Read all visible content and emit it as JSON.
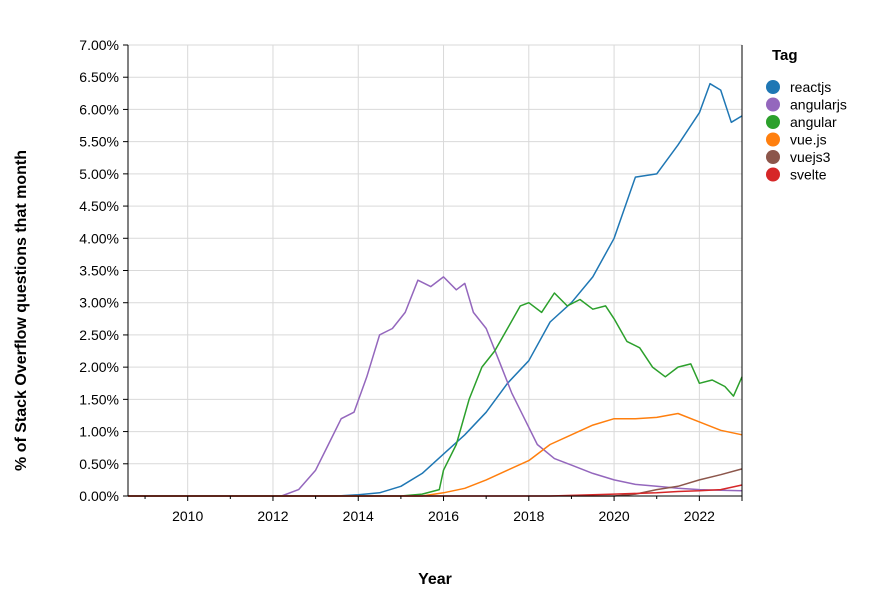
{
  "chart_data": {
    "type": "line",
    "xlabel": "Year",
    "ylabel": "% of Stack Overflow questions that month",
    "xlim": [
      2008.6,
      2023.0
    ],
    "ylim": [
      0,
      7.0
    ],
    "x_ticks": [
      2010,
      2012,
      2014,
      2016,
      2018,
      2020,
      2022
    ],
    "y_ticks": [
      0,
      0.5,
      1.0,
      1.5,
      2.0,
      2.5,
      3.0,
      3.5,
      4.0,
      4.5,
      5.0,
      5.5,
      6.0,
      6.5,
      7.0
    ],
    "y_tick_labels": [
      "0.00%",
      "0.50%",
      "1.00%",
      "1.50%",
      "2.00%",
      "2.50%",
      "3.00%",
      "3.50%",
      "4.00%",
      "4.50%",
      "5.00%",
      "5.50%",
      "6.00%",
      "6.50%",
      "7.00%"
    ],
    "grid": true,
    "legend": {
      "title": "Tag",
      "placement": "right"
    },
    "series": [
      {
        "name": "reactjs",
        "color": "#1f77b4",
        "points": [
          [
            2008.6,
            0
          ],
          [
            2013.5,
            0
          ],
          [
            2014.0,
            0.02
          ],
          [
            2014.5,
            0.05
          ],
          [
            2015.0,
            0.15
          ],
          [
            2015.5,
            0.35
          ],
          [
            2016.0,
            0.65
          ],
          [
            2016.5,
            0.95
          ],
          [
            2017.0,
            1.3
          ],
          [
            2017.5,
            1.75
          ],
          [
            2018.0,
            2.1
          ],
          [
            2018.5,
            2.7
          ],
          [
            2019.0,
            3.0
          ],
          [
            2019.5,
            3.4
          ],
          [
            2020.0,
            4.0
          ],
          [
            2020.5,
            4.95
          ],
          [
            2021.0,
            5.0
          ],
          [
            2021.5,
            5.45
          ],
          [
            2022.0,
            5.95
          ],
          [
            2022.25,
            6.4
          ],
          [
            2022.5,
            6.3
          ],
          [
            2022.75,
            5.8
          ],
          [
            2023.0,
            5.9
          ]
        ]
      },
      {
        "name": "angularjs",
        "color": "#9467bd",
        "points": [
          [
            2008.6,
            0
          ],
          [
            2012.2,
            0
          ],
          [
            2012.6,
            0.1
          ],
          [
            2013.0,
            0.4
          ],
          [
            2013.3,
            0.8
          ],
          [
            2013.6,
            1.2
          ],
          [
            2013.9,
            1.3
          ],
          [
            2014.2,
            1.85
          ],
          [
            2014.5,
            2.5
          ],
          [
            2014.8,
            2.6
          ],
          [
            2015.1,
            2.85
          ],
          [
            2015.4,
            3.35
          ],
          [
            2015.7,
            3.25
          ],
          [
            2016.0,
            3.4
          ],
          [
            2016.3,
            3.2
          ],
          [
            2016.5,
            3.3
          ],
          [
            2016.7,
            2.85
          ],
          [
            2017.0,
            2.6
          ],
          [
            2017.3,
            2.1
          ],
          [
            2017.6,
            1.6
          ],
          [
            2017.9,
            1.2
          ],
          [
            2018.2,
            0.8
          ],
          [
            2018.6,
            0.58
          ],
          [
            2019.0,
            0.48
          ],
          [
            2019.5,
            0.35
          ],
          [
            2020.0,
            0.25
          ],
          [
            2020.5,
            0.18
          ],
          [
            2021.0,
            0.15
          ],
          [
            2021.5,
            0.12
          ],
          [
            2022.0,
            0.1
          ],
          [
            2022.5,
            0.09
          ],
          [
            2023.0,
            0.08
          ]
        ]
      },
      {
        "name": "angular",
        "color": "#2ca02c",
        "points": [
          [
            2008.6,
            0
          ],
          [
            2015.0,
            0
          ],
          [
            2015.5,
            0.03
          ],
          [
            2015.9,
            0.1
          ],
          [
            2016.0,
            0.4
          ],
          [
            2016.3,
            0.8
          ],
          [
            2016.6,
            1.5
          ],
          [
            2016.9,
            2.0
          ],
          [
            2017.2,
            2.25
          ],
          [
            2017.5,
            2.6
          ],
          [
            2017.8,
            2.95
          ],
          [
            2018.0,
            3.0
          ],
          [
            2018.3,
            2.85
          ],
          [
            2018.6,
            3.15
          ],
          [
            2018.9,
            2.95
          ],
          [
            2019.2,
            3.05
          ],
          [
            2019.5,
            2.9
          ],
          [
            2019.8,
            2.95
          ],
          [
            2020.0,
            2.75
          ],
          [
            2020.3,
            2.4
          ],
          [
            2020.6,
            2.3
          ],
          [
            2020.9,
            2.0
          ],
          [
            2021.2,
            1.85
          ],
          [
            2021.5,
            2.0
          ],
          [
            2021.8,
            2.05
          ],
          [
            2022.0,
            1.75
          ],
          [
            2022.3,
            1.8
          ],
          [
            2022.6,
            1.7
          ],
          [
            2022.8,
            1.55
          ],
          [
            2023.0,
            1.85
          ]
        ]
      },
      {
        "name": "vue.js",
        "color": "#ff7f0e",
        "points": [
          [
            2008.6,
            0
          ],
          [
            2015.5,
            0
          ],
          [
            2016.0,
            0.05
          ],
          [
            2016.5,
            0.12
          ],
          [
            2017.0,
            0.25
          ],
          [
            2017.5,
            0.4
          ],
          [
            2018.0,
            0.55
          ],
          [
            2018.5,
            0.8
          ],
          [
            2019.0,
            0.95
          ],
          [
            2019.5,
            1.1
          ],
          [
            2020.0,
            1.2
          ],
          [
            2020.5,
            1.2
          ],
          [
            2021.0,
            1.22
          ],
          [
            2021.5,
            1.28
          ],
          [
            2022.0,
            1.15
          ],
          [
            2022.5,
            1.02
          ],
          [
            2023.0,
            0.95
          ]
        ]
      },
      {
        "name": "vuejs3",
        "color": "#8c564b",
        "points": [
          [
            2008.6,
            0
          ],
          [
            2020.0,
            0
          ],
          [
            2020.5,
            0.03
          ],
          [
            2021.0,
            0.1
          ],
          [
            2021.5,
            0.15
          ],
          [
            2022.0,
            0.25
          ],
          [
            2022.5,
            0.33
          ],
          [
            2023.0,
            0.42
          ]
        ]
      },
      {
        "name": "svelte",
        "color": "#d62728",
        "points": [
          [
            2008.6,
            0
          ],
          [
            2018.5,
            0
          ],
          [
            2019.0,
            0.01
          ],
          [
            2020.0,
            0.03
          ],
          [
            2021.0,
            0.05
          ],
          [
            2021.5,
            0.07
          ],
          [
            2022.0,
            0.08
          ],
          [
            2022.5,
            0.1
          ],
          [
            2023.0,
            0.17
          ]
        ]
      }
    ]
  }
}
